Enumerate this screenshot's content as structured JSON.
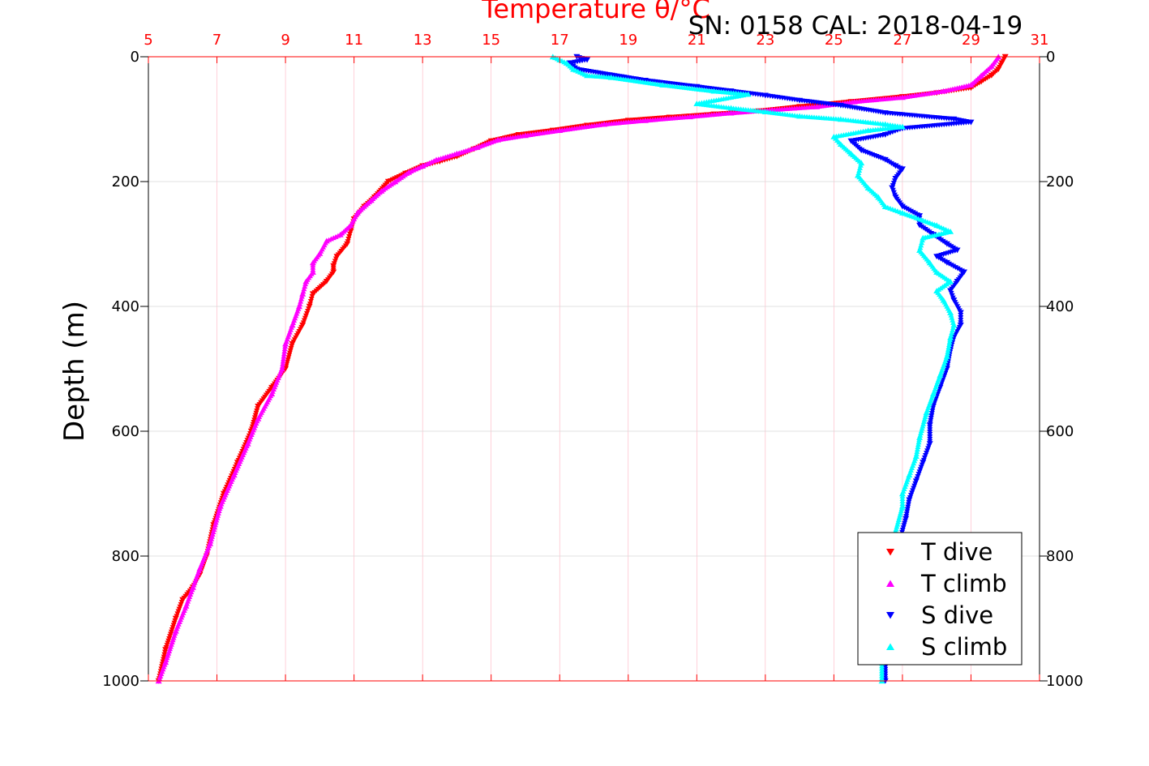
{
  "chart_data": {
    "type": "scatter",
    "title": "Temperature θ/°C",
    "annotation": "SN: 0158  CAL: 2018-04-19",
    "ylabel": "Depth (m)",
    "xlim": [
      5,
      31
    ],
    "ylim": [
      1000,
      0
    ],
    "x_ticks": [
      "5",
      "7",
      "9",
      "11",
      "13",
      "15",
      "17",
      "19",
      "21",
      "23",
      "25",
      "27",
      "29",
      "31"
    ],
    "y_ticks": [
      "0",
      "200",
      "400",
      "600",
      "800",
      "1000"
    ],
    "grid": true,
    "legend_position": "bottom-right",
    "colors": {
      "t_dive": "#ff0000",
      "t_climb": "#ff00ff",
      "s_dive": "#0000ff",
      "s_climb": "#00ffff",
      "top_axis": "#ff0000"
    },
    "series": [
      {
        "name": "T dive",
        "marker": "triangle-down",
        "color": "#ff0000",
        "points": [
          [
            30.0,
            0
          ],
          [
            29.9,
            10
          ],
          [
            29.8,
            20
          ],
          [
            29.6,
            30
          ],
          [
            29.3,
            40
          ],
          [
            29.0,
            50
          ],
          [
            28.0,
            58
          ],
          [
            27.0,
            64
          ],
          [
            25.5,
            72
          ],
          [
            24.0,
            80
          ],
          [
            22.8,
            87
          ],
          [
            21.5,
            92
          ],
          [
            20.2,
            97
          ],
          [
            19.0,
            102
          ],
          [
            17.8,
            110
          ],
          [
            16.8,
            118
          ],
          [
            15.8,
            125
          ],
          [
            15.0,
            135
          ],
          [
            14.5,
            148
          ],
          [
            14.0,
            160
          ],
          [
            13.5,
            168
          ],
          [
            13.0,
            175
          ],
          [
            12.5,
            187
          ],
          [
            12.0,
            200
          ],
          [
            11.6,
            225
          ],
          [
            11.3,
            240
          ],
          [
            11.0,
            260
          ],
          [
            10.9,
            280
          ],
          [
            10.8,
            300
          ],
          [
            10.5,
            320
          ],
          [
            10.4,
            335
          ],
          [
            10.4,
            345
          ],
          [
            10.2,
            360
          ],
          [
            9.8,
            380
          ],
          [
            9.7,
            400
          ],
          [
            9.5,
            430
          ],
          [
            9.2,
            460
          ],
          [
            9.0,
            500
          ],
          [
            8.6,
            530
          ],
          [
            8.2,
            560
          ],
          [
            8.0,
            600
          ],
          [
            7.6,
            650
          ],
          [
            7.2,
            700
          ],
          [
            6.9,
            750
          ],
          [
            6.7,
            800
          ],
          [
            6.5,
            830
          ],
          [
            6.3,
            850
          ],
          [
            6.0,
            870
          ],
          [
            5.8,
            900
          ],
          [
            5.5,
            950
          ],
          [
            5.3,
            1000
          ]
        ]
      },
      {
        "name": "T climb",
        "marker": "triangle-up",
        "color": "#ff00ff",
        "points": [
          [
            29.8,
            0
          ],
          [
            29.6,
            15
          ],
          [
            29.3,
            30
          ],
          [
            29.0,
            45
          ],
          [
            28.2,
            55
          ],
          [
            27.0,
            65
          ],
          [
            25.6,
            72
          ],
          [
            24.5,
            80
          ],
          [
            23.2,
            85
          ],
          [
            22.0,
            90
          ],
          [
            20.8,
            96
          ],
          [
            19.5,
            102
          ],
          [
            18.3,
            108
          ],
          [
            17.0,
            118
          ],
          [
            16.0,
            126
          ],
          [
            15.2,
            133
          ],
          [
            14.6,
            145
          ],
          [
            14.0,
            155
          ],
          [
            13.4,
            165
          ],
          [
            13.0,
            175
          ],
          [
            12.6,
            185
          ],
          [
            12.2,
            200
          ],
          [
            11.8,
            215
          ],
          [
            11.5,
            230
          ],
          [
            11.1,
            250
          ],
          [
            10.9,
            270
          ],
          [
            10.6,
            285
          ],
          [
            10.2,
            295
          ],
          [
            10.0,
            315
          ],
          [
            9.8,
            330
          ],
          [
            9.8,
            345
          ],
          [
            9.6,
            360
          ],
          [
            9.5,
            380
          ],
          [
            9.4,
            400
          ],
          [
            9.2,
            430
          ],
          [
            9.0,
            460
          ],
          [
            8.9,
            500
          ],
          [
            8.6,
            540
          ],
          [
            8.2,
            580
          ],
          [
            7.9,
            620
          ],
          [
            7.5,
            670
          ],
          [
            7.1,
            720
          ],
          [
            6.8,
            780
          ],
          [
            6.5,
            820
          ],
          [
            6.3,
            850
          ],
          [
            6.1,
            880
          ],
          [
            5.8,
            920
          ],
          [
            5.5,
            970
          ],
          [
            5.3,
            1000
          ]
        ]
      },
      {
        "name": "S dive",
        "marker": "triangle-down",
        "color": "#0000ff",
        "points": [
          [
            17.5,
            0
          ],
          [
            17.8,
            5
          ],
          [
            17.3,
            10
          ],
          [
            17.5,
            20
          ],
          [
            19.5,
            38
          ],
          [
            21.0,
            48
          ],
          [
            22.0,
            55
          ],
          [
            23.0,
            62
          ],
          [
            24.0,
            70
          ],
          [
            25.2,
            78
          ],
          [
            26.5,
            90
          ],
          [
            28.5,
            100
          ],
          [
            29.0,
            105
          ],
          [
            27.0,
            115
          ],
          [
            26.5,
            125
          ],
          [
            25.5,
            135
          ],
          [
            25.8,
            150
          ],
          [
            26.5,
            165
          ],
          [
            26.8,
            175
          ],
          [
            27.0,
            180
          ],
          [
            26.8,
            195
          ],
          [
            26.7,
            210
          ],
          [
            26.8,
            225
          ],
          [
            27.0,
            240
          ],
          [
            27.5,
            255
          ],
          [
            27.5,
            270
          ],
          [
            27.9,
            285
          ],
          [
            28.3,
            300
          ],
          [
            28.6,
            310
          ],
          [
            28.0,
            320
          ],
          [
            28.3,
            330
          ],
          [
            28.8,
            345
          ],
          [
            28.6,
            360
          ],
          [
            28.4,
            375
          ],
          [
            28.5,
            390
          ],
          [
            28.7,
            410
          ],
          [
            28.7,
            430
          ],
          [
            28.5,
            450
          ],
          [
            28.4,
            470
          ],
          [
            28.3,
            500
          ],
          [
            28.1,
            530
          ],
          [
            27.9,
            560
          ],
          [
            27.8,
            590
          ],
          [
            27.8,
            620
          ],
          [
            27.6,
            650
          ],
          [
            27.4,
            680
          ],
          [
            27.2,
            710
          ],
          [
            27.1,
            740
          ],
          [
            26.9,
            780
          ],
          [
            26.8,
            820
          ],
          [
            26.7,
            860
          ],
          [
            26.6,
            900
          ],
          [
            26.6,
            940
          ],
          [
            26.5,
            970
          ],
          [
            26.5,
            1000
          ]
        ]
      },
      {
        "name": "S climb",
        "marker": "triangle-up",
        "color": "#00ffff",
        "points": [
          [
            16.8,
            0
          ],
          [
            17.0,
            5
          ],
          [
            17.2,
            10
          ],
          [
            17.4,
            20
          ],
          [
            17.8,
            30
          ],
          [
            18.5,
            33
          ],
          [
            20.0,
            45
          ],
          [
            21.5,
            55
          ],
          [
            22.5,
            60
          ],
          [
            21.0,
            75
          ],
          [
            22.0,
            82
          ],
          [
            23.0,
            88
          ],
          [
            24.0,
            95
          ],
          [
            25.2,
            100
          ],
          [
            26.5,
            108
          ],
          [
            27.0,
            112
          ],
          [
            26.0,
            118
          ],
          [
            25.0,
            128
          ],
          [
            25.2,
            140
          ],
          [
            25.5,
            155
          ],
          [
            25.8,
            170
          ],
          [
            25.7,
            190
          ],
          [
            26.0,
            210
          ],
          [
            26.3,
            225
          ],
          [
            26.5,
            240
          ],
          [
            27.0,
            250
          ],
          [
            28.0,
            270
          ],
          [
            28.4,
            280
          ],
          [
            27.6,
            290
          ],
          [
            27.5,
            310
          ],
          [
            27.8,
            330
          ],
          [
            28.0,
            345
          ],
          [
            28.4,
            360
          ],
          [
            28.0,
            375
          ],
          [
            28.2,
            390
          ],
          [
            28.4,
            410
          ],
          [
            28.5,
            430
          ],
          [
            28.4,
            450
          ],
          [
            28.3,
            480
          ],
          [
            28.1,
            510
          ],
          [
            27.9,
            540
          ],
          [
            27.7,
            570
          ],
          [
            27.5,
            610
          ],
          [
            27.4,
            640
          ],
          [
            27.2,
            670
          ],
          [
            27.0,
            700
          ],
          [
            27.0,
            720
          ],
          [
            26.8,
            760
          ],
          [
            26.7,
            800
          ],
          [
            26.6,
            840
          ],
          [
            26.5,
            880
          ],
          [
            26.5,
            920
          ],
          [
            26.4,
            960
          ],
          [
            26.4,
            1000
          ]
        ]
      }
    ]
  }
}
